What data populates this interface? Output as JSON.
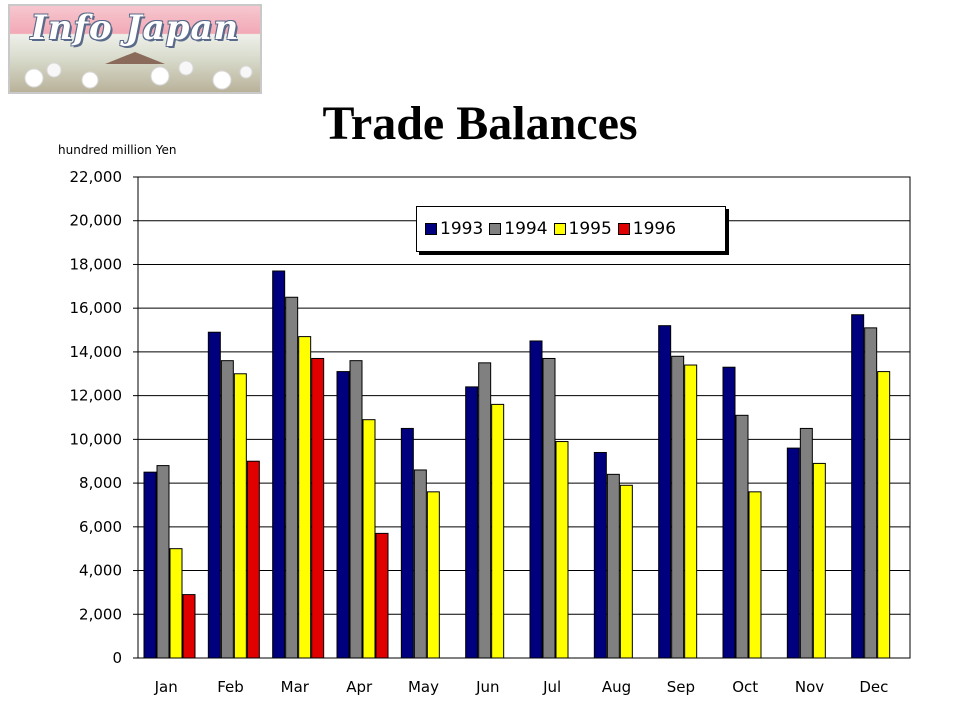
{
  "logo": {
    "text": "Info Japan"
  },
  "title": "Trade Balances",
  "chart_data": {
    "type": "bar",
    "title": "Trade Balances",
    "ylabel": "hundred million Yen",
    "xlabel": "",
    "ylim": [
      0,
      22000
    ],
    "y_ticks": [
      "0",
      "2,000",
      "4,000",
      "6,000",
      "8,000",
      "10,000",
      "12,000",
      "14,000",
      "16,000",
      "18,000",
      "20,000",
      "22,000"
    ],
    "y_tick_values": [
      0,
      2000,
      4000,
      6000,
      8000,
      10000,
      12000,
      14000,
      16000,
      18000,
      20000,
      22000
    ],
    "grid": true,
    "legend_position": "top-center",
    "categories": [
      "Jan",
      "Feb",
      "Mar",
      "Apr",
      "May",
      "Jun",
      "Jul",
      "Aug",
      "Sep",
      "Oct",
      "Nov",
      "Dec"
    ],
    "series": [
      {
        "name": "1993",
        "color": "#00007f",
        "values": [
          8500,
          14900,
          17700,
          13100,
          10500,
          12400,
          14500,
          9400,
          15200,
          13300,
          9600,
          15700
        ]
      },
      {
        "name": "1994",
        "color": "#808080",
        "values": [
          8800,
          13600,
          16500,
          13600,
          8600,
          13500,
          13700,
          8400,
          13800,
          11100,
          10500,
          15100
        ]
      },
      {
        "name": "1995",
        "color": "#ffff00",
        "values": [
          5000,
          13000,
          14700,
          10900,
          7600,
          11600,
          9900,
          7900,
          13400,
          7600,
          8900,
          13100
        ]
      },
      {
        "name": "1996",
        "color": "#e00000",
        "values": [
          2900,
          9000,
          13700,
          5700,
          null,
          null,
          null,
          null,
          null,
          null,
          null,
          null
        ]
      }
    ]
  }
}
